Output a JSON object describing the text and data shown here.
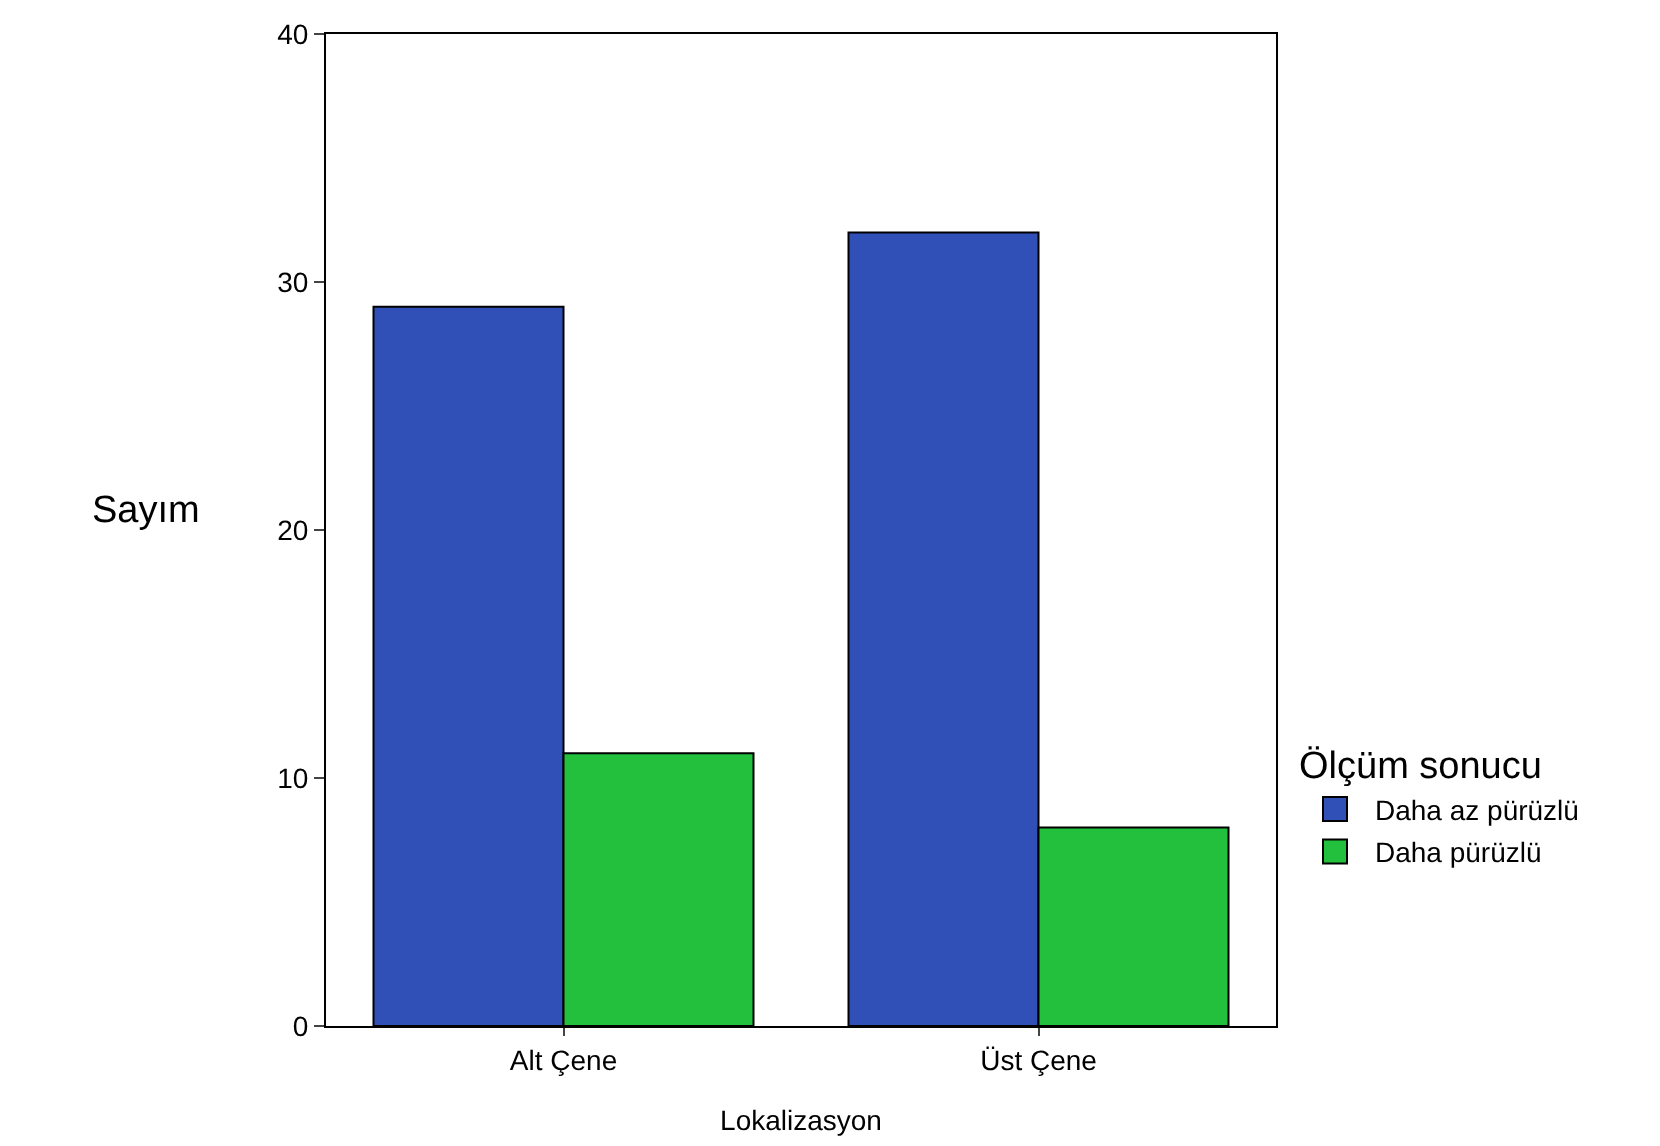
{
  "chart_data": {
    "type": "bar",
    "xlabel": "Lokalizasyon",
    "ylabel": "Sayım",
    "legend_title": "Ölçüm sonucu",
    "categories": [
      "Alt Çene",
      "Üst Çene"
    ],
    "series": [
      {
        "name": "Daha az pürüzlü",
        "color": "#3050b8",
        "values": [
          29,
          32
        ]
      },
      {
        "name": "Daha pürüzlü",
        "color": "#22c03c",
        "values": [
          11,
          8
        ]
      }
    ],
    "ylim": [
      0,
      40
    ],
    "yticks": [
      0,
      10,
      20,
      30,
      40
    ],
    "grid": false,
    "legend": "right"
  }
}
